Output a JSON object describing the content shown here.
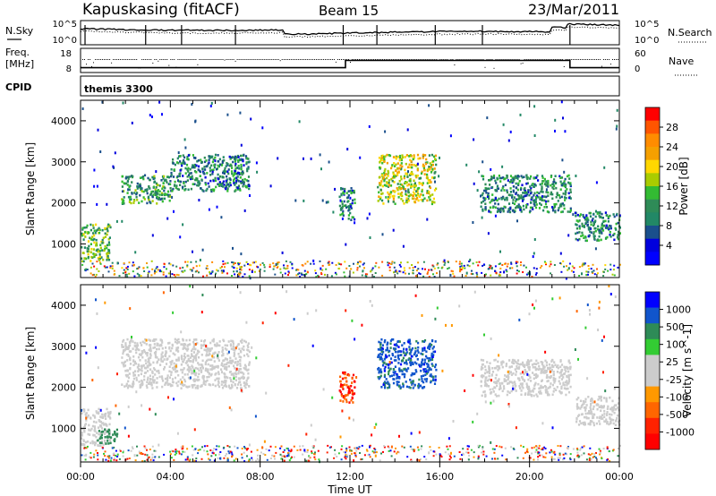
{
  "header": {
    "station": "Kapuskasing (fitACF)",
    "beam": "Beam 15",
    "date": "23/Mar/2011"
  },
  "sky_panel": {
    "left_label": "N.Sky",
    "right_label": "N.Search",
    "tick_top": "10^5",
    "tick_bottom": "10^0",
    "right_tick_top": "10^5",
    "right_tick_bottom": "10^0"
  },
  "freq_panel": {
    "left_label_1": "Freq.",
    "left_label_2": "[MHz]",
    "left_tick_top": "18",
    "left_tick_bottom": "8",
    "right_label": "Nave",
    "right_tick_top": "60",
    "right_tick_bottom": "0"
  },
  "cpid_panel": {
    "label": "CPID",
    "program": "themis 3300"
  },
  "axes": {
    "ylabel": "Slant Range [km]",
    "xlabel": "Time UT",
    "yticks": [
      "4000",
      "3000",
      "2000",
      "1000"
    ],
    "xticks": [
      "00:00",
      "04:00",
      "08:00",
      "12:00",
      "16:00",
      "20:00",
      "00:00"
    ]
  },
  "power_colorbar": {
    "label": "Power [dB]",
    "ticks": [
      "28",
      "24",
      "20",
      "16",
      "12",
      "8",
      "4"
    ],
    "colors": [
      "#ff0000",
      "#ff5500",
      "#ff8c00",
      "#f5a000",
      "#ffd700",
      "#aacc00",
      "#33bb33",
      "#2e8b57",
      "#228866",
      "#1a4f8c",
      "#0000dd",
      "#0000ff"
    ]
  },
  "velocity_colorbar": {
    "label": "Velocity [m s^-1]",
    "ticks": [
      "1000",
      "500",
      "100",
      "25",
      "-25",
      "-100",
      "-500",
      "-1000"
    ],
    "colors": [
      "#0000ff",
      "#1155cc",
      "#2e8b57",
      "#33cc33",
      "#cccccc",
      "#cccccc",
      "#ff9900",
      "#ff6600",
      "#ff2200",
      "#ff0000"
    ]
  },
  "chart_data": {
    "type": "heatmap",
    "title": "Kapuskasing (fitACF)",
    "subtitle": "Beam 15 23/Mar/2011",
    "xlabel": "Time UT",
    "ylabel": "Slant Range [km]",
    "xlim": [
      0,
      24
    ],
    "ylim": [
      180,
      4500
    ],
    "panels": [
      {
        "name": "Power",
        "colorbar_label": "Power [dB]",
        "colorbar_range": [
          0,
          32
        ],
        "echo_regions": [
          {
            "t": [
              0.0,
              1.3
            ],
            "range": [
              600,
              1500
            ],
            "value": 14
          },
          {
            "t": [
              1.8,
              4.0
            ],
            "range": [
              2000,
              2700
            ],
            "value": 12
          },
          {
            "t": [
              4.0,
              7.5
            ],
            "range": [
              2300,
              3200
            ],
            "value": 10
          },
          {
            "t": [
              11.5,
              12.2
            ],
            "range": [
              1600,
              2400
            ],
            "value": 10
          },
          {
            "t": [
              13.2,
              15.8
            ],
            "range": [
              2000,
              3200
            ],
            "value": 18
          },
          {
            "t": [
              17.8,
              21.8
            ],
            "range": [
              1800,
              2700
            ],
            "value": 10
          },
          {
            "t": [
              22.0,
              24.0
            ],
            "range": [
              1100,
              1800
            ],
            "value": 10
          }
        ]
      },
      {
        "name": "Velocity",
        "colorbar_label": "Velocity [m s^-1]",
        "colorbar_range": [
          -1000,
          1000
        ],
        "echo_regions": [
          {
            "t": [
              0.0,
              1.3
            ],
            "range": [
              600,
              1500
            ],
            "value": 0
          },
          {
            "t": [
              0.7,
              1.6
            ],
            "range": [
              650,
              1000
            ],
            "value": 100
          },
          {
            "t": [
              1.8,
              7.5
            ],
            "range": [
              2000,
              3200
            ],
            "value": 0
          },
          {
            "t": [
              11.5,
              12.2
            ],
            "range": [
              1600,
              2400
            ],
            "value": -500
          },
          {
            "t": [
              13.2,
              15.8
            ],
            "range": [
              2000,
              3200
            ],
            "value": 500
          },
          {
            "t": [
              17.8,
              21.8
            ],
            "range": [
              1800,
              2700
            ],
            "value": 0
          },
          {
            "t": [
              22.0,
              24.0
            ],
            "range": [
              1100,
              1800
            ],
            "value": 0
          }
        ]
      }
    ],
    "transmit_frequency": [
      {
        "t": [
          0,
          11.8
        ],
        "freq": 10
      },
      {
        "t": [
          11.8,
          21.8
        ],
        "freq": 13
      },
      {
        "t": [
          21.8,
          24
        ],
        "freq": 10
      }
    ]
  }
}
